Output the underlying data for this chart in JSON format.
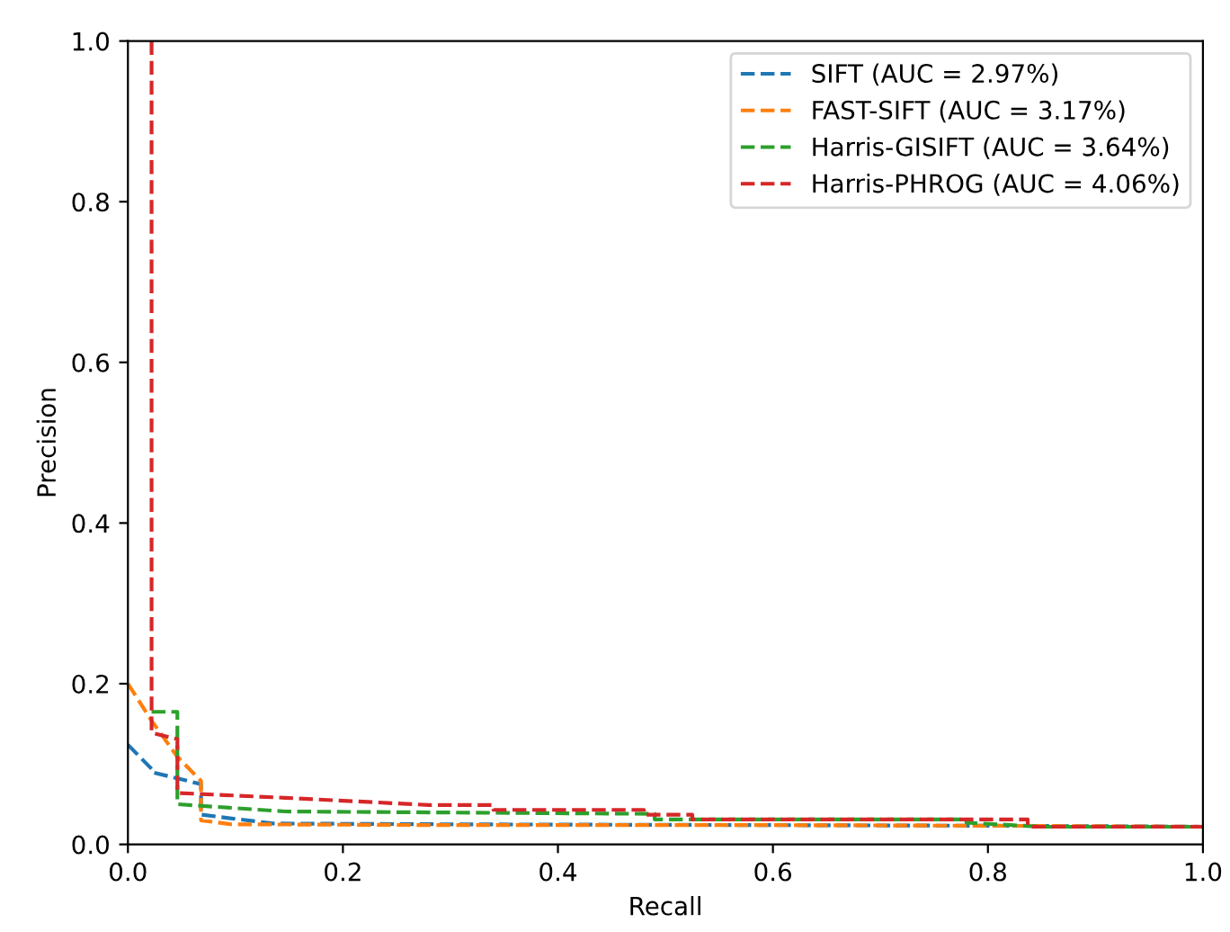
{
  "chart_data": {
    "type": "line",
    "xlabel": "Recall",
    "ylabel": "Precision",
    "xlim": [
      0,
      1
    ],
    "ylim": [
      0,
      1
    ],
    "xticks": [
      {
        "value": 0,
        "label": "0.0"
      },
      0.2,
      0.4,
      0.6,
      0.8,
      {
        "value": 1,
        "label": "1.0"
      }
    ],
    "yticks": [
      {
        "value": 0,
        "label": "0.0"
      },
      0.2,
      0.4,
      0.6,
      0.8,
      {
        "value": 1,
        "label": "1.0"
      }
    ],
    "grid": false,
    "legend": "top right",
    "line_style": "dashed",
    "marker": "none",
    "series": [
      {
        "name": "SIFT (AUC = 2.97%)",
        "color": "#1f77b4",
        "x": [
          0,
          0.022,
          0.022,
          0.068,
          0.068,
          0.135,
          0.3,
          0.6,
          0.85,
          1.0
        ],
        "values": [
          0.124,
          0.094,
          0.09,
          0.075,
          0.037,
          0.026,
          0.025,
          0.024,
          0.023,
          0.022
        ]
      },
      {
        "name": "FAST-SIFT (AUC = 3.17%)",
        "color": "#ff7f0e",
        "x": [
          0,
          0.022,
          0.046,
          0.068,
          0.068,
          0.096,
          0.3,
          0.6,
          0.85,
          1.0
        ],
        "values": [
          0.2,
          0.154,
          0.109,
          0.079,
          0.03,
          0.025,
          0.024,
          0.024,
          0.023,
          0.022
        ]
      },
      {
        "name": "Harris-GISIFT (AUC = 3.64%)",
        "color": "#2ca02c",
        "x": [
          0.022,
          0.046,
          0.046,
          0.146,
          0.49,
          0.49,
          0.78,
          0.78,
          0.85,
          1.0
        ],
        "values": [
          0.165,
          0.165,
          0.05,
          0.041,
          0.038,
          0.031,
          0.031,
          0.027,
          0.022,
          0.022
        ]
      },
      {
        "name": "Harris-PHROG (AUC = 4.06%)",
        "color": "#d62728",
        "x": [
          0.022,
          0.022,
          0.046,
          0.046,
          0.146,
          0.28,
          0.34,
          0.34,
          0.48,
          0.48,
          0.525,
          0.525,
          0.837,
          0.837,
          1.0
        ],
        "values": [
          1.0,
          0.139,
          0.131,
          0.064,
          0.058,
          0.049,
          0.049,
          0.043,
          0.043,
          0.037,
          0.037,
          0.031,
          0.031,
          0.022,
          0.022
        ]
      }
    ]
  }
}
